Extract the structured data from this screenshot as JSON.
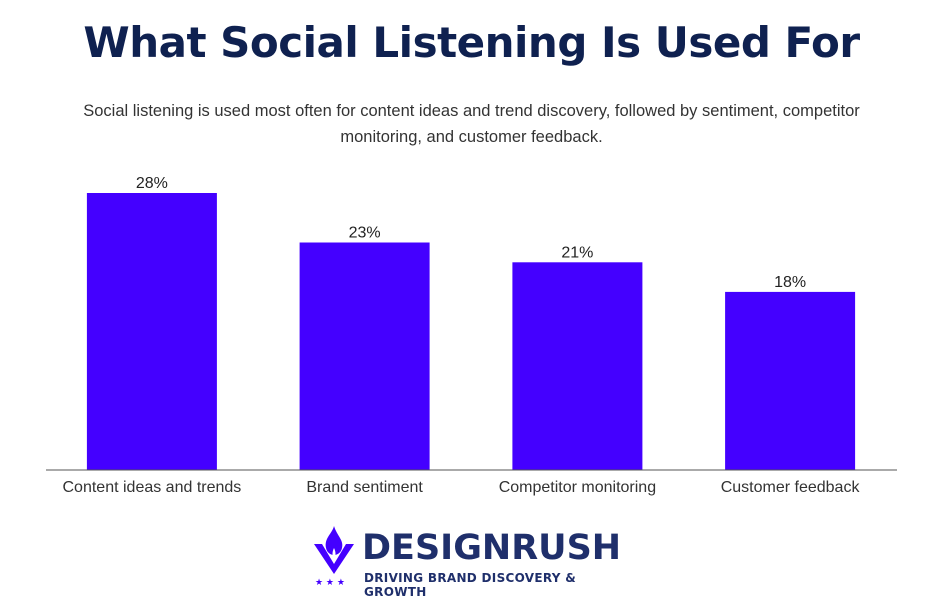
{
  "header": {
    "title": "What Social Listening Is Used For",
    "subtitle": "Social listening is used most often for content ideas and trend discovery, followed by sentiment, competitor monitoring, and customer feedback."
  },
  "chart_data": {
    "type": "bar",
    "categories": [
      "Content ideas and trends",
      "Brand sentiment",
      "Competitor monitoring",
      "Customer feedback"
    ],
    "values": [
      28,
      23,
      21,
      18
    ],
    "value_labels": [
      "28%",
      "23%",
      "21%",
      "18%"
    ],
    "bar_color": "#4400ff",
    "ylim": [
      0,
      28
    ],
    "grid": false,
    "legend": "none"
  },
  "logo": {
    "name": "DESIGNRUSH",
    "tagline": "DRIVING BRAND DISCOVERY & GROWTH",
    "icon": "designrush-flame-icon",
    "brand_color": "#1f2f6b",
    "accent_color": "#4400ff"
  }
}
